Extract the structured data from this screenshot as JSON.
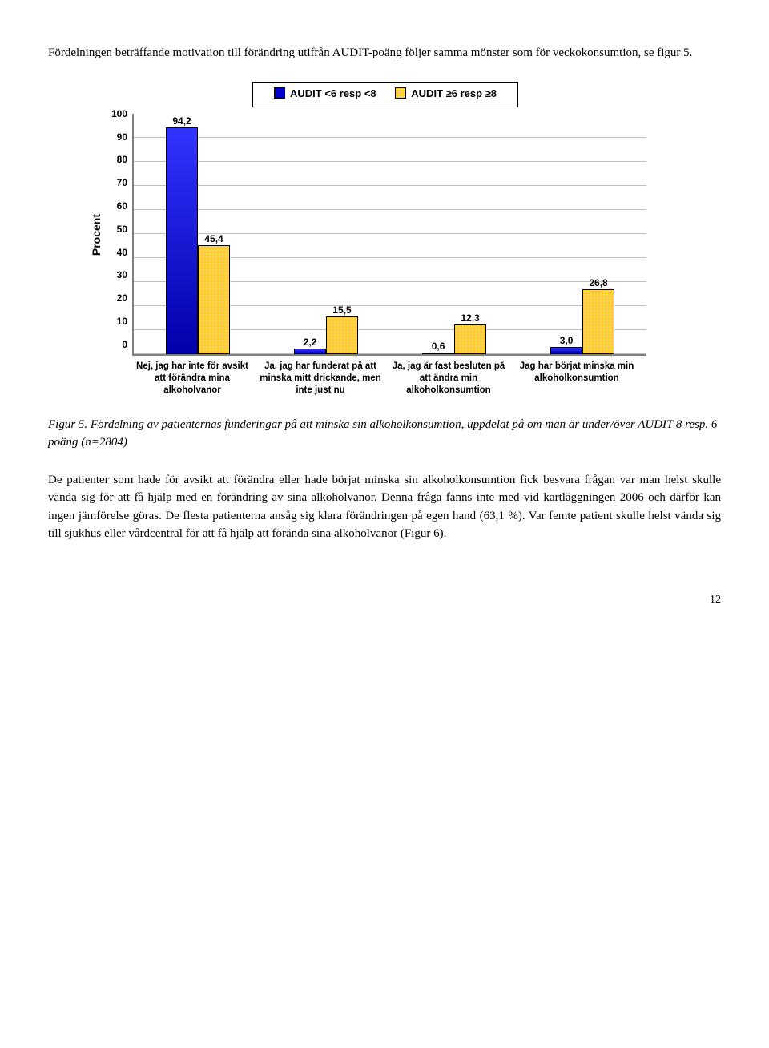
{
  "intro": "Fördelningen beträffande motivation till förändring utifrån AUDIT-poäng följer samma mönster som för veckokonsumtion, se figur 5.",
  "chart": {
    "legend": {
      "series1": "AUDIT <6 resp <8",
      "series2": "AUDIT ≥6 resp ≥8",
      "color1": "#0000cc",
      "color2": "#ffcc33"
    },
    "y_axis_label": "Procent",
    "y_ticks": [
      "100",
      "90",
      "80",
      "70",
      "60",
      "50",
      "40",
      "30",
      "20",
      "10",
      "0"
    ],
    "y_max": 100,
    "groups": [
      {
        "label": "Nej, jag har inte för avsikt att förändra mina alkoholvanor",
        "v1": 94.2,
        "v1_label": "94,2",
        "v2": 45.4,
        "v2_label": "45,4"
      },
      {
        "label": "Ja, jag har funderat på att minska mitt drickande, men inte just nu",
        "v1": 2.2,
        "v1_label": "2,2",
        "v2": 15.5,
        "v2_label": "15,5"
      },
      {
        "label": "Ja, jag är fast besluten på att ändra min alkoholkonsumtion",
        "v1": 0.6,
        "v1_label": "0,6",
        "v2": 12.3,
        "v2_label": "12,3"
      },
      {
        "label": "Jag har börjat minska min alkoholkonsumtion",
        "v1": 3.0,
        "v1_label": "3,0",
        "v2": 26.8,
        "v2_label": "26,8"
      }
    ]
  },
  "caption": "Figur 5. Fördelning av patienternas funderingar på att minska sin alkoholkonsumtion, uppdelat på om man är under/över AUDIT 8 resp. 6 poäng (n=2804)",
  "body": "De patienter som hade för avsikt att förändra eller hade börjat minska sin alkoholkonsumtion fick besvara frågan var man helst skulle vända sig för att få hjälp med en förändring av sina alkoholvanor. Denna fråga fanns inte med vid kartläggningen 2006 och därför kan ingen jämförelse göras. De flesta patienterna ansåg sig klara förändringen på egen hand (63,1 %). Var femte patient skulle helst vända sig till sjukhus eller vårdcentral för att få hjälp att förända sina alkoholvanor (Figur 6).",
  "page_number": "12"
}
